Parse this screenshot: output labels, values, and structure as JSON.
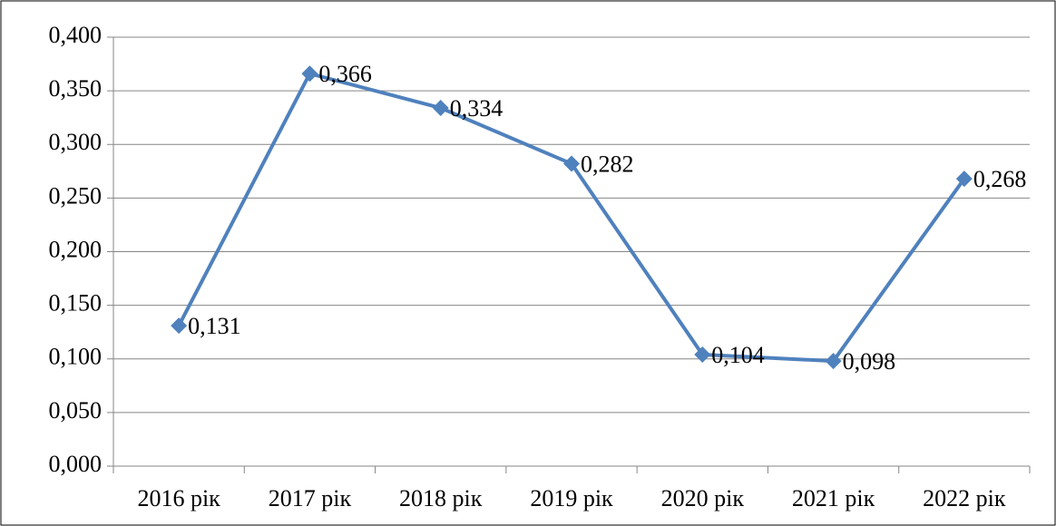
{
  "chart_data": {
    "type": "line",
    "categories": [
      "2016 рік",
      "2017 рік",
      "2018 рік",
      "2019 рік",
      "2020 рік",
      "2021 рік",
      "2022 рік"
    ],
    "values": [
      0.131,
      0.366,
      0.334,
      0.282,
      0.104,
      0.098,
      0.268
    ],
    "value_labels": [
      "0,131",
      "0,366",
      "0,334",
      "0,282",
      "0,104",
      "0,098",
      "0,268"
    ],
    "color": "#4f81bd",
    "ylim": [
      0,
      0.4
    ],
    "yticks": [
      {
        "value": 0,
        "label": "0,000"
      },
      {
        "value": 0.05,
        "label": "0,050"
      },
      {
        "value": 0.1,
        "label": "0,100"
      },
      {
        "value": 0.15,
        "label": "0,150"
      },
      {
        "value": 0.2,
        "label": "0,200"
      },
      {
        "value": 0.25,
        "label": "0,250"
      },
      {
        "value": 0.3,
        "label": "0,300"
      },
      {
        "value": 0.35,
        "label": "0,350"
      },
      {
        "value": 0.4,
        "label": "0,400"
      }
    ],
    "grid": true
  }
}
